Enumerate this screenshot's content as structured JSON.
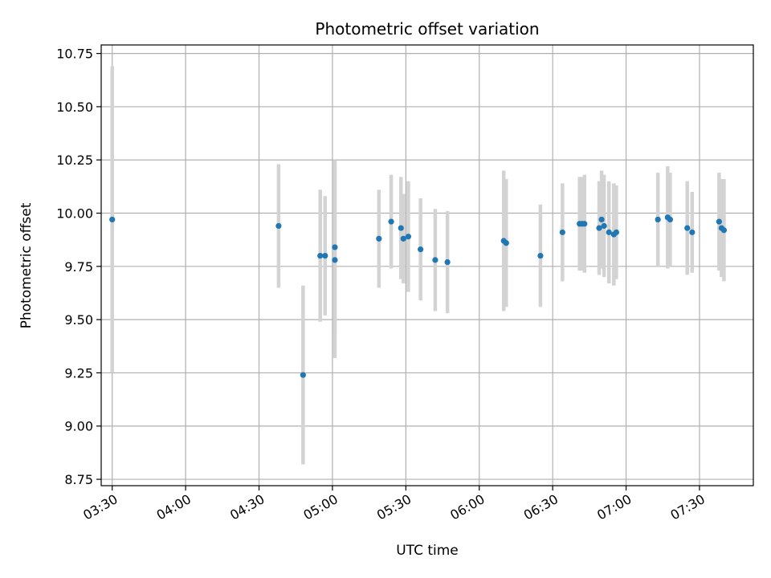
{
  "chart_data": {
    "type": "scatter",
    "title": "Photometric offset variation",
    "xlabel": "UTC time",
    "ylabel": "Photometric offset",
    "x_tick_labels": [
      "03:30",
      "04:00",
      "04:30",
      "05:00",
      "05:30",
      "06:00",
      "06:30",
      "07:00",
      "07:30"
    ],
    "y_tick_labels": [
      "8.75",
      "9.00",
      "9.25",
      "9.50",
      "9.75",
      "10.00",
      "10.25",
      "10.50",
      "10.75"
    ],
    "xlim": [
      "03:30",
      "07:52"
    ],
    "ylim": [
      8.72,
      10.79
    ],
    "grid": true,
    "colors": {
      "point": "#1f77b4",
      "errorbar": "#d3d3d3",
      "grid": "#b0b0b0"
    },
    "series": [
      {
        "values": [
          {
            "x": "03:30",
            "y": 9.97,
            "err": 0.72
          },
          {
            "x": "04:38",
            "y": 9.94,
            "err": 0.29
          },
          {
            "x": "04:48",
            "y": 9.24,
            "err": 0.42
          },
          {
            "x": "04:55",
            "y": 9.8,
            "err": 0.31
          },
          {
            "x": "04:57",
            "y": 9.8,
            "err": 0.28
          },
          {
            "x": "05:01",
            "y": 9.84,
            "err": 0.41
          },
          {
            "x": "05:01",
            "y": 9.78,
            "err": 0.46
          },
          {
            "x": "05:19",
            "y": 9.88,
            "err": 0.23
          },
          {
            "x": "05:24",
            "y": 9.96,
            "err": 0.22
          },
          {
            "x": "05:28",
            "y": 9.93,
            "err": 0.24
          },
          {
            "x": "05:29",
            "y": 9.88,
            "err": 0.21
          },
          {
            "x": "05:31",
            "y": 9.89,
            "err": 0.26
          },
          {
            "x": "05:36",
            "y": 9.83,
            "err": 0.24
          },
          {
            "x": "05:42",
            "y": 9.78,
            "err": 0.24
          },
          {
            "x": "05:47",
            "y": 9.77,
            "err": 0.24
          },
          {
            "x": "06:10",
            "y": 9.87,
            "err": 0.33
          },
          {
            "x": "06:11",
            "y": 9.86,
            "err": 0.3
          },
          {
            "x": "06:25",
            "y": 9.8,
            "err": 0.24
          },
          {
            "x": "06:34",
            "y": 9.91,
            "err": 0.23
          },
          {
            "x": "06:41",
            "y": 9.95,
            "err": 0.22
          },
          {
            "x": "06:42",
            "y": 9.95,
            "err": 0.22
          },
          {
            "x": "06:43",
            "y": 9.95,
            "err": 0.23
          },
          {
            "x": "06:49",
            "y": 9.93,
            "err": 0.22
          },
          {
            "x": "06:50",
            "y": 9.97,
            "err": 0.23
          },
          {
            "x": "06:51",
            "y": 9.94,
            "err": 0.24
          },
          {
            "x": "06:53",
            "y": 9.91,
            "err": 0.24
          },
          {
            "x": "06:55",
            "y": 9.9,
            "err": 0.24
          },
          {
            "x": "06:56",
            "y": 9.91,
            "err": 0.22
          },
          {
            "x": "07:13",
            "y": 9.97,
            "err": 0.22
          },
          {
            "x": "07:17",
            "y": 9.98,
            "err": 0.24
          },
          {
            "x": "07:18",
            "y": 9.97,
            "err": 0.22
          },
          {
            "x": "07:25",
            "y": 9.93,
            "err": 0.22
          },
          {
            "x": "07:27",
            "y": 9.91,
            "err": 0.19
          },
          {
            "x": "07:38",
            "y": 9.96,
            "err": 0.23
          },
          {
            "x": "07:39",
            "y": 9.93,
            "err": 0.23
          },
          {
            "x": "07:40",
            "y": 9.92,
            "err": 0.24
          }
        ]
      }
    ]
  }
}
